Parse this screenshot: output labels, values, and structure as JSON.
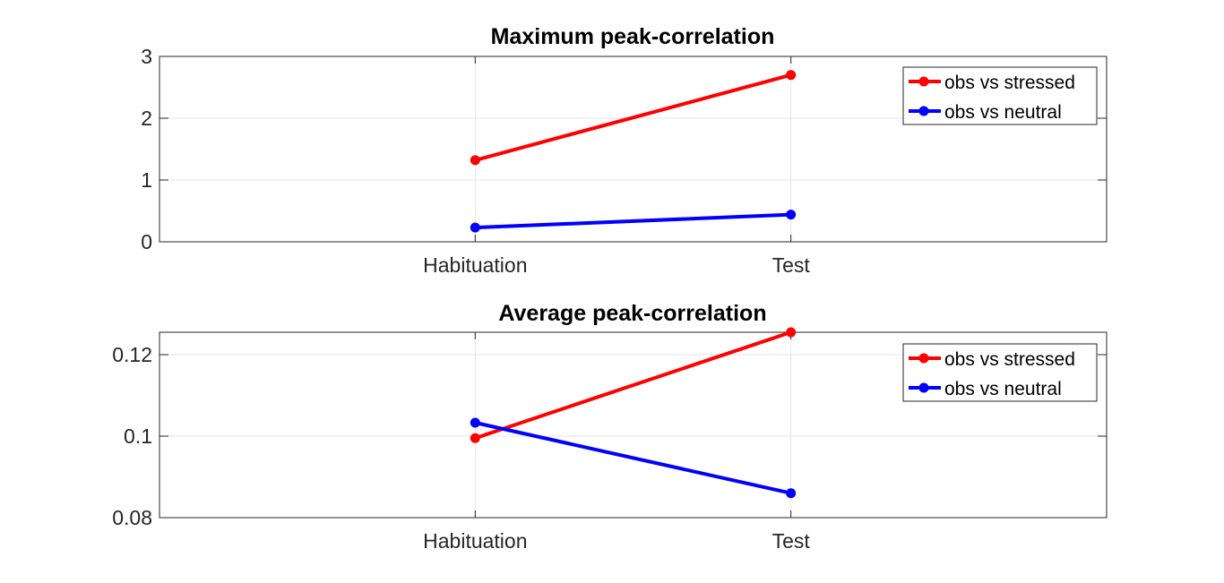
{
  "chart_data": [
    {
      "type": "line",
      "title": "Maximum peak-correlation",
      "xlabel": "",
      "ylabel": "",
      "categories": [
        "Habituation",
        "Test"
      ],
      "ylim": [
        0,
        3
      ],
      "yticks": [
        0,
        1,
        2,
        3
      ],
      "ytick_labels": [
        "0",
        "1",
        "2",
        "3"
      ],
      "grid": true,
      "legend_position": "top-right",
      "series": [
        {
          "name": "obs vs stressed",
          "color": "#ff0000",
          "values": [
            1.32,
            2.7
          ]
        },
        {
          "name": "obs vs neutral",
          "color": "#0000ff",
          "values": [
            0.23,
            0.44
          ]
        }
      ]
    },
    {
      "type": "line",
      "title": "Average peak-correlation",
      "xlabel": "",
      "ylabel": "",
      "categories": [
        "Habituation",
        "Test"
      ],
      "ylim": [
        0.08,
        0.1255
      ],
      "yticks": [
        0.08,
        0.1,
        0.12
      ],
      "ytick_labels": [
        "0.08",
        "0.1",
        "0.12"
      ],
      "grid": true,
      "legend_position": "top-right",
      "series": [
        {
          "name": "obs vs stressed",
          "color": "#ff0000",
          "values": [
            0.0995,
            0.1255
          ]
        },
        {
          "name": "obs vs neutral",
          "color": "#0000ff",
          "values": [
            0.1033,
            0.086
          ]
        }
      ]
    }
  ]
}
